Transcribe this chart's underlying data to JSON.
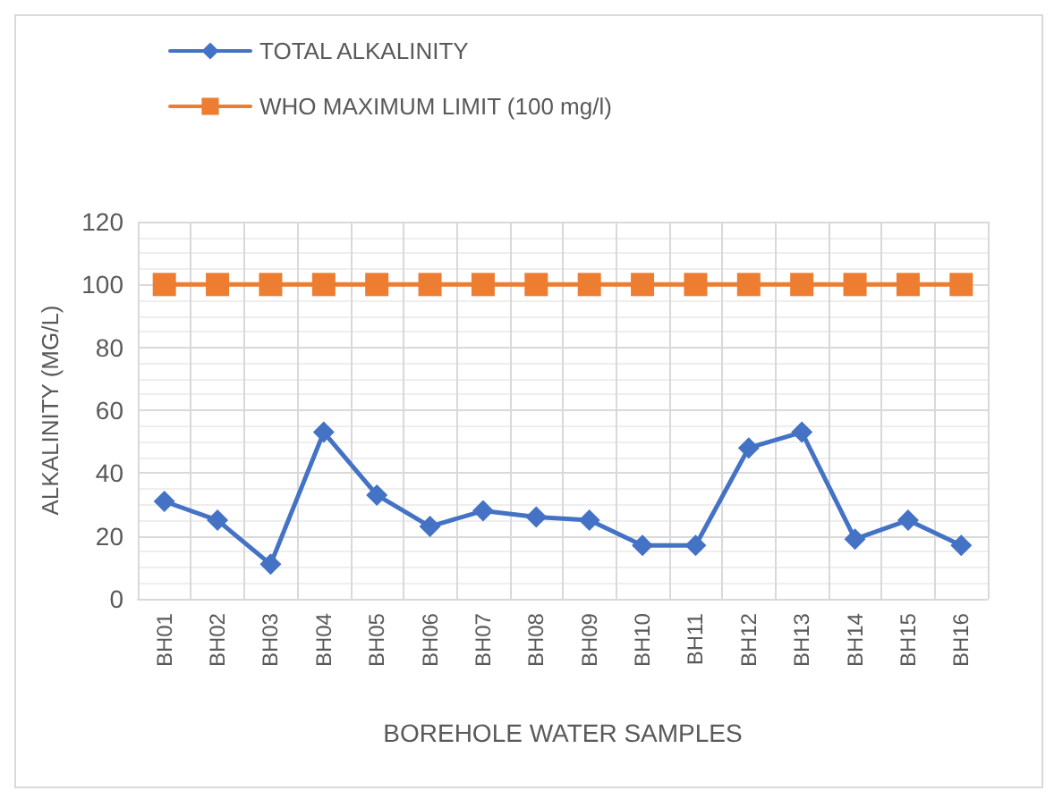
{
  "chart_data": {
    "type": "line",
    "xlabel": "BOREHOLE WATER SAMPLES",
    "ylabel": "ALKALINITY (MG/L)",
    "categories": [
      "BH01",
      "BH02",
      "BH03",
      "BH04",
      "BH05",
      "BH06",
      "BH07",
      "BH08",
      "BH09",
      "BH10",
      "BH11",
      "BH12",
      "BH13",
      "BH14",
      "BH15",
      "BH16"
    ],
    "series": [
      {
        "name": "TOTAL ALKALINITY",
        "color": "#4472c4",
        "marker": "diamond",
        "values": [
          31,
          25,
          11,
          53,
          33,
          23,
          28,
          26,
          25,
          17,
          17,
          48,
          53,
          19,
          25,
          17
        ]
      },
      {
        "name": "WHO MAXIMUM LIMIT (100 mg/l)",
        "color": "#ed7d31",
        "marker": "square",
        "values": [
          100,
          100,
          100,
          100,
          100,
          100,
          100,
          100,
          100,
          100,
          100,
          100,
          100,
          100,
          100,
          100
        ]
      }
    ],
    "ylim": [
      0,
      120
    ],
    "yticks": [
      0,
      20,
      40,
      60,
      80,
      100,
      120
    ],
    "grid": true,
    "legend": "top",
    "line_style": "solid"
  }
}
